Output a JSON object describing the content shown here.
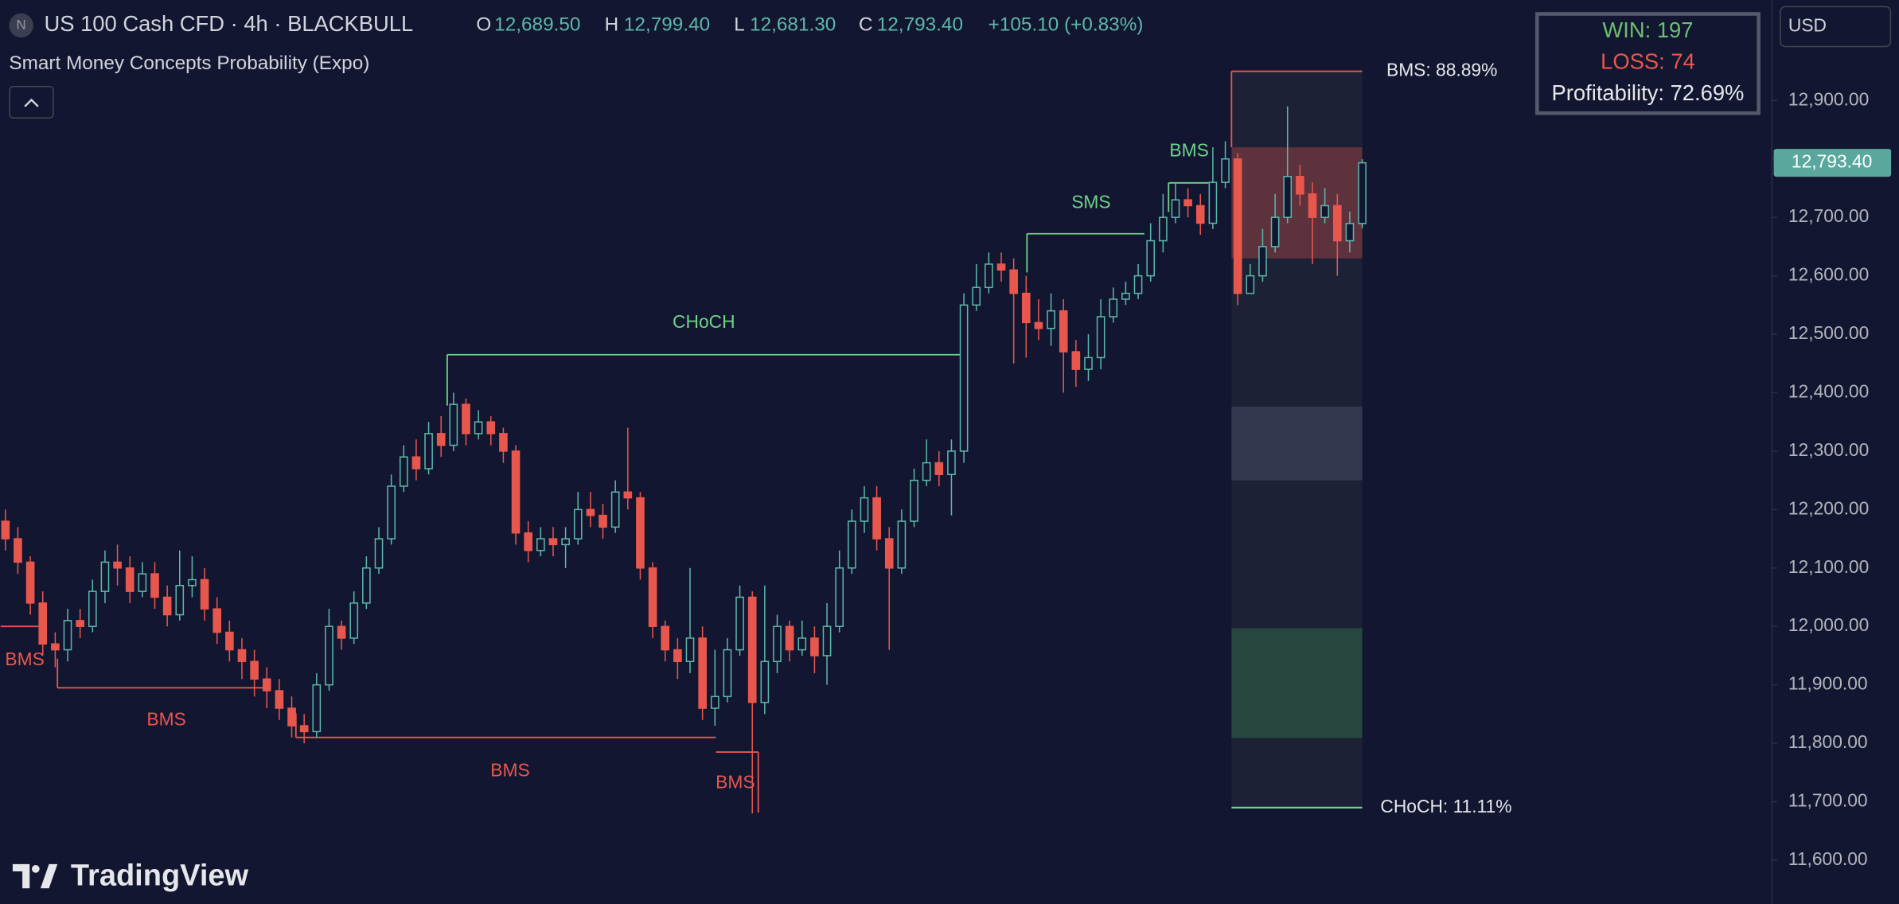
{
  "header": {
    "symbol_icon": "N",
    "symbol": "US 100 Cash CFD · 4h · BLACKBULL",
    "o_label": "O",
    "o_value": "12,689.50",
    "h_label": "H",
    "h_value": "12,799.40",
    "l_label": "L",
    "l_value": "12,681.30",
    "c_label": "C",
    "c_value": "12,793.40",
    "change": "+105.10 (+0.83%)",
    "indicator": "Smart Money Concepts Probability (Expo)"
  },
  "stats": {
    "win": "WIN: 197",
    "loss": "LOSS: 74",
    "profitability": "Profitability: 72.69%"
  },
  "currency": "USD",
  "logo": "TradingView",
  "chart_data": {
    "type": "candlestick",
    "open": [
      12180,
      12150,
      12110,
      12040,
      11970,
      11960,
      12010,
      12000,
      12060,
      12110,
      12100,
      12060,
      12090,
      12050,
      12020,
      12070,
      12080,
      12030,
      11990,
      11960,
      11940,
      11910,
      11890,
      11860,
      11830,
      11820,
      11900,
      12000,
      11980,
      12040,
      12100,
      12150,
      12240,
      12290,
      12270,
      12330,
      12310,
      12380,
      12330,
      12350,
      12330,
      12300,
      12160,
      12130,
      12150,
      12140,
      12150,
      12200,
      12190,
      12170,
      12230,
      12220,
      12100,
      12000,
      11960,
      11940,
      11980,
      11860,
      11880,
      11960,
      12050,
      11870,
      11940,
      12000,
      11960,
      11980,
      11950,
      12000,
      12100,
      12180,
      12220,
      12150,
      12100,
      12180,
      12250,
      12280,
      12260,
      12300,
      12550,
      12580,
      12620,
      12610,
      12570,
      12520,
      12510,
      12540,
      12470,
      12440,
      12460,
      12530,
      12560,
      12570,
      12600,
      12660,
      12700,
      12730,
      12720,
      12690,
      12760,
      12800,
      12570,
      12600,
      12650,
      12700,
      12770,
      12740,
      12700,
      12720,
      12660,
      12689.5
    ],
    "high": [
      12200,
      12170,
      12120,
      12060,
      11990,
      12030,
      12030,
      12080,
      12130,
      12140,
      12120,
      12110,
      12110,
      12070,
      12130,
      12120,
      12100,
      12050,
      12010,
      11980,
      11960,
      11930,
      11910,
      11880,
      11850,
      11920,
      12030,
      12010,
      12060,
      12120,
      12170,
      12260,
      12310,
      12320,
      12350,
      12360,
      12400,
      12390,
      12370,
      12360,
      12340,
      12310,
      12180,
      12170,
      12170,
      12170,
      12230,
      12230,
      12210,
      12250,
      12340,
      12230,
      12110,
      12010,
      11980,
      12100,
      12000,
      11960,
      11980,
      12070,
      12060,
      12070,
      12020,
      12010,
      12010,
      12000,
      12040,
      12130,
      12200,
      12240,
      12240,
      12170,
      12200,
      12270,
      12320,
      12300,
      12320,
      12570,
      12620,
      12640,
      12640,
      12630,
      12600,
      12560,
      12570,
      12560,
      12490,
      12500,
      12560,
      12580,
      12590,
      12620,
      12690,
      12740,
      12760,
      12750,
      12740,
      12820,
      12830,
      12810,
      12620,
      12680,
      12740,
      12890,
      12790,
      12760,
      12750,
      12740,
      12710,
      12799.4
    ],
    "low": [
      12130,
      12090,
      12020,
      11950,
      11930,
      11940,
      11980,
      11990,
      12040,
      12070,
      12040,
      12050,
      12030,
      12000,
      12010,
      12050,
      12010,
      11970,
      11940,
      11910,
      11880,
      11860,
      11840,
      11810,
      11800,
      11810,
      11890,
      11960,
      11970,
      12030,
      12090,
      12140,
      12230,
      12250,
      12260,
      12290,
      12300,
      12310,
      12320,
      12310,
      12280,
      12140,
      12110,
      12120,
      12120,
      12100,
      12140,
      12170,
      12150,
      12160,
      12200,
      12080,
      11980,
      11940,
      11910,
      11920,
      11840,
      11830,
      11870,
      11950,
      11680,
      11850,
      11920,
      11940,
      11950,
      11920,
      11900,
      11990,
      12090,
      12160,
      12130,
      11960,
      12090,
      12170,
      12240,
      12240,
      12190,
      12280,
      12540,
      12570,
      12590,
      12450,
      12460,
      12490,
      12480,
      12400,
      12410,
      12420,
      12440,
      12520,
      12550,
      12560,
      12590,
      12640,
      12690,
      12700,
      12670,
      12680,
      12750,
      12550,
      12570,
      12590,
      12640,
      12690,
      12720,
      12620,
      12690,
      12600,
      12640,
      12681.3
    ],
    "close": [
      12150,
      12110,
      12040,
      11970,
      11960,
      12010,
      12000,
      12060,
      12110,
      12100,
      12060,
      12090,
      12050,
      12020,
      12070,
      12080,
      12030,
      11990,
      11960,
      11940,
      11910,
      11890,
      11860,
      11830,
      11820,
      11900,
      12000,
      11980,
      12040,
      12100,
      12150,
      12240,
      12290,
      12270,
      12330,
      12310,
      12380,
      12330,
      12350,
      12330,
      12300,
      12160,
      12130,
      12150,
      12140,
      12150,
      12200,
      12190,
      12170,
      12230,
      12220,
      12100,
      12000,
      11960,
      11940,
      11980,
      11860,
      11880,
      11960,
      12050,
      11870,
      11940,
      12000,
      11960,
      11980,
      11950,
      12000,
      12100,
      12180,
      12220,
      12150,
      12100,
      12180,
      12250,
      12280,
      12260,
      12300,
      12550,
      12580,
      12620,
      12610,
      12570,
      12520,
      12510,
      12540,
      12470,
      12440,
      12460,
      12530,
      12560,
      12570,
      12600,
      12660,
      12700,
      12730,
      12720,
      12690,
      12760,
      12800,
      12570,
      12600,
      12650,
      12700,
      12770,
      12740,
      12700,
      12720,
      12660,
      12689.5,
      12793.4
    ],
    "up_color": "#5cb8ab",
    "down_color": "#e8574d",
    "ylim": [
      11525,
      13072
    ],
    "yticks": [
      {
        "value": 11600,
        "label": "11,600.00"
      },
      {
        "value": 11700,
        "label": "11,700.00"
      },
      {
        "value": 11800,
        "label": "11,800.00"
      },
      {
        "value": 11900,
        "label": "11,900.00"
      },
      {
        "value": 12000,
        "label": "12,000.00"
      },
      {
        "value": 12100,
        "label": "12,100.00"
      },
      {
        "value": 12200,
        "label": "12,200.00"
      },
      {
        "value": 12300,
        "label": "12,300.00"
      },
      {
        "value": 12400,
        "label": "12,400.00"
      },
      {
        "value": 12500,
        "label": "12,500.00"
      },
      {
        "value": 12600,
        "label": "12,600.00"
      },
      {
        "value": 12700,
        "label": "12,700.00"
      },
      {
        "value": 12800,
        "label": "12,800.00"
      },
      {
        "value": 12900,
        "label": "12,900.00"
      }
    ],
    "last_price": {
      "value": 12793.4,
      "label": "12,793.40"
    },
    "structures": [
      {
        "label": "BMS",
        "price": 12000,
        "color": "#e8574d"
      },
      {
        "label": "BMS",
        "price": 11895,
        "color": "#e8574d"
      },
      {
        "label": "BMS",
        "price": 11810,
        "color": "#e8574d"
      },
      {
        "label": "BMS",
        "price": 11785,
        "color": "#e8574d"
      },
      {
        "label": "CHoCH",
        "price": 12465,
        "color": "#6fd38a"
      },
      {
        "label": "SMS",
        "price": 12672,
        "color": "#6fd38a"
      },
      {
        "label": "BMS",
        "price": 12759,
        "color": "#6fd38a"
      }
    ],
    "probability": {
      "top": {
        "price": 12950,
        "label": "BMS: 88.89%",
        "color": "#e8574d"
      },
      "bottom": {
        "price": 11690,
        "label": "CHoCH: 11.11%",
        "color": "#6fd38a"
      },
      "zones": [
        {
          "from": 12630,
          "to": 12820,
          "color": "rgba(232,87,77,0.32)"
        },
        {
          "from": 12250,
          "to": 12376,
          "color": "#33384f"
        },
        {
          "from": 11809,
          "to": 11997,
          "color": "#27463f"
        }
      ]
    }
  }
}
